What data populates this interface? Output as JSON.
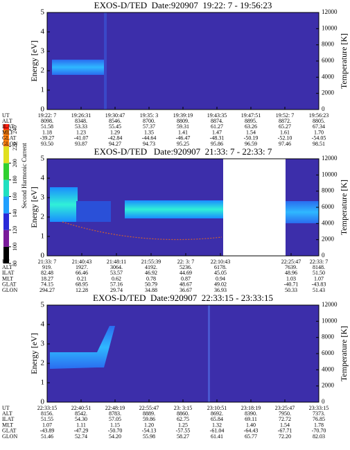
{
  "colorbar": {
    "label": "Second Harmonic Current",
    "ticks": [
      80,
      100,
      120,
      140,
      160,
      180,
      200,
      220,
      240
    ]
  },
  "panels": [
    {
      "title": "EXOS-D/TED  Date:920907  19:22: 7 - 19:56:23",
      "ylabel": "Energy [eV]",
      "y2label": "Temperature [K]",
      "ylim": [
        0,
        5
      ],
      "yticks": [
        0,
        1,
        2,
        3,
        4,
        5
      ],
      "y2lim": [
        0,
        12000
      ],
      "y2ticks": [
        0,
        2000,
        4000,
        6000,
        8000,
        10000,
        12000
      ],
      "table": [
        {
          "label": "UT",
          "values": [
            "19:22: 7",
            "19:26:31",
            "19:30:47",
            "19:35: 3",
            "19:39:19",
            "19:43:35",
            "19:47:51",
            "19:52: 7",
            "19:56:23"
          ]
        },
        {
          "label": "ALT",
          "values": [
            "8098.",
            "8348.",
            "8546.",
            "8700.",
            "8809.",
            "8874.",
            "8895.",
            "8872.",
            "8805."
          ]
        },
        {
          "label": "ILAT",
          "values": [
            "51.58",
            "53.33",
            "55.45",
            "57.37",
            "59.31",
            "61.27",
            "63.26",
            "65.27",
            "67.34"
          ]
        },
        {
          "label": "MLT",
          "values": [
            "1.18",
            "1.23",
            "1.29",
            "1.35",
            "1.41",
            "1.47",
            "1.54",
            "1.61",
            "1.70"
          ]
        },
        {
          "label": "GLAT",
          "values": [
            "-39.27",
            "-41.07",
            "-42.84",
            "-44.64",
            "-46.47",
            "-48.31",
            "-50.19",
            "-52.10",
            "-54.05"
          ]
        },
        {
          "label": "GLON",
          "values": [
            "93.50",
            "93.87",
            "94.27",
            "94.73",
            "95.25",
            "95.86",
            "96.59",
            "97.46",
            "98.51"
          ]
        }
      ]
    },
    {
      "title": "EXOS-D/TED   Date:920907  21:33: 7 - 22:33: 7",
      "ylabel": "Energy [eV]",
      "y2label": "Temperature [K]",
      "ylim": [
        0,
        5
      ],
      "yticks": [
        0,
        1,
        2,
        3,
        4,
        5
      ],
      "y2lim": [
        0,
        12000
      ],
      "y2ticks": [
        0,
        2000,
        4000,
        6000,
        8000,
        10000,
        12000
      ],
      "table": [
        {
          "label": "UT",
          "values": [
            "21:33: 7",
            "21:40:43",
            "21:48:11",
            "21:55:39",
            "22: 3: 7",
            "22:10:43",
            "22:25:47",
            "22:33: 7"
          ]
        },
        {
          "label": "ALT",
          "values": [
            "919.",
            "1927.",
            "3064.",
            "4192.",
            "5236.",
            "6178.",
            "7639.",
            "8148."
          ]
        },
        {
          "label": "ILAT",
          "values": [
            "82.48",
            "66.46",
            "53.57",
            "46.92",
            "44.69",
            "45.05",
            "48.96",
            "51.50"
          ]
        },
        {
          "label": "MLT",
          "values": [
            "18.27",
            "0.21",
            "0.62",
            "0.78",
            "0.87",
            "0.94",
            "1.03",
            "1.07"
          ]
        },
        {
          "label": "GLAT",
          "values": [
            "74.15",
            "68.95",
            "57.16",
            "50.79",
            "48.67",
            "49.02",
            "-40.71",
            "-43.83"
          ]
        },
        {
          "label": "GLON",
          "values": [
            "294.27",
            "12.28",
            "29.74",
            "34.88",
            "36.67",
            "36.93",
            "50.33",
            "51.43"
          ]
        }
      ]
    },
    {
      "title": "EXOS-D/TED  Date:920907  22:33:15 - 23:33:15",
      "ylabel": "Energy [eV]",
      "y2label": "Temperature [K]",
      "ylim": [
        0,
        5
      ],
      "yticks": [
        0,
        1,
        2,
        3,
        4,
        5
      ],
      "y2lim": [
        0,
        12000
      ],
      "y2ticks": [
        0,
        2000,
        4000,
        6000,
        8000,
        10000,
        12000
      ],
      "table": [
        {
          "label": "UT",
          "values": [
            "22:33:15",
            "22:40:51",
            "22:48:19",
            "22:55:47",
            "23: 3:15",
            "23:10:51",
            "23:18:19",
            "23:25:47",
            "23:33:15"
          ]
        },
        {
          "label": "ALT",
          "values": [
            "8156.",
            "8542.",
            "8783.",
            "8889.",
            "8860.",
            "8692.",
            "8390.",
            "7950.",
            "7373."
          ]
        },
        {
          "label": "ILAT",
          "values": [
            "51.55",
            "54.30",
            "57.05",
            "59.86",
            "62.75",
            "65.84",
            "69.11",
            "72.72",
            "76.85"
          ]
        },
        {
          "label": "MLT",
          "values": [
            "1.07",
            "1.11",
            "1.15",
            "1.20",
            "1.25",
            "1.32",
            "1.40",
            "1.54",
            "1.78"
          ]
        },
        {
          "label": "GLAT",
          "values": [
            "-43.89",
            "-47.29",
            "-50.70",
            "-54.13",
            "-57.55",
            "-61.04",
            "-64.43",
            "-67.71",
            "-70.70"
          ]
        },
        {
          "label": "GLON",
          "values": [
            "51.46",
            "52.74",
            "54.20",
            "55.98",
            "58.27",
            "61.41",
            "65.77",
            "72.20",
            "82.03"
          ]
        }
      ]
    }
  ]
}
